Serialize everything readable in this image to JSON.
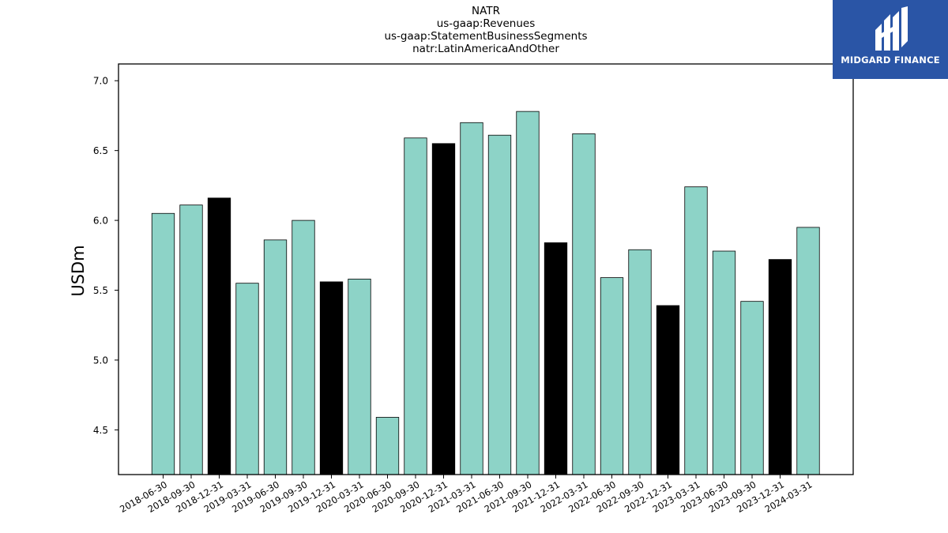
{
  "titles": [
    "NATR",
    "us-gaap:Revenues",
    "us-gaap:StatementBusinessSegments",
    "natr:LatinAmericaAndOther"
  ],
  "logo": {
    "text": "MIDGARD FINANCE"
  },
  "colors": {
    "bar_default": "#8dd3c7",
    "bar_highlight": "#000000",
    "axis": "#000000"
  },
  "chart_data": {
    "type": "bar",
    "ylabel": "USDm",
    "xlabel": "",
    "ylim": [
      4.18,
      7.12
    ],
    "yticks": [
      4.5,
      5.0,
      5.5,
      6.0,
      6.5,
      7.0
    ],
    "ytick_labels": [
      "4.5",
      "5.0",
      "5.5",
      "6.0",
      "6.5",
      "7.0"
    ],
    "categories": [
      "2018-06-30",
      "2018-09-30",
      "2018-12-31",
      "2019-03-31",
      "2019-06-30",
      "2019-09-30",
      "2019-12-31",
      "2020-03-31",
      "2020-06-30",
      "2020-09-30",
      "2020-12-31",
      "2021-03-31",
      "2021-06-30",
      "2021-09-30",
      "2021-12-31",
      "2022-03-31",
      "2022-06-30",
      "2022-09-30",
      "2022-12-31",
      "2023-03-31",
      "2023-06-30",
      "2023-09-30",
      "2023-12-31",
      "2024-03-31"
    ],
    "values": [
      6.05,
      6.11,
      6.16,
      5.55,
      5.86,
      6.0,
      5.56,
      5.58,
      4.59,
      6.59,
      6.55,
      6.7,
      6.61,
      6.78,
      5.84,
      6.62,
      5.59,
      5.79,
      5.39,
      6.24,
      5.78,
      5.42,
      5.72,
      5.95
    ],
    "highlight": [
      false,
      false,
      true,
      false,
      false,
      false,
      true,
      false,
      false,
      false,
      true,
      false,
      false,
      false,
      true,
      false,
      false,
      false,
      true,
      false,
      false,
      false,
      true,
      false
    ],
    "grid": false
  }
}
